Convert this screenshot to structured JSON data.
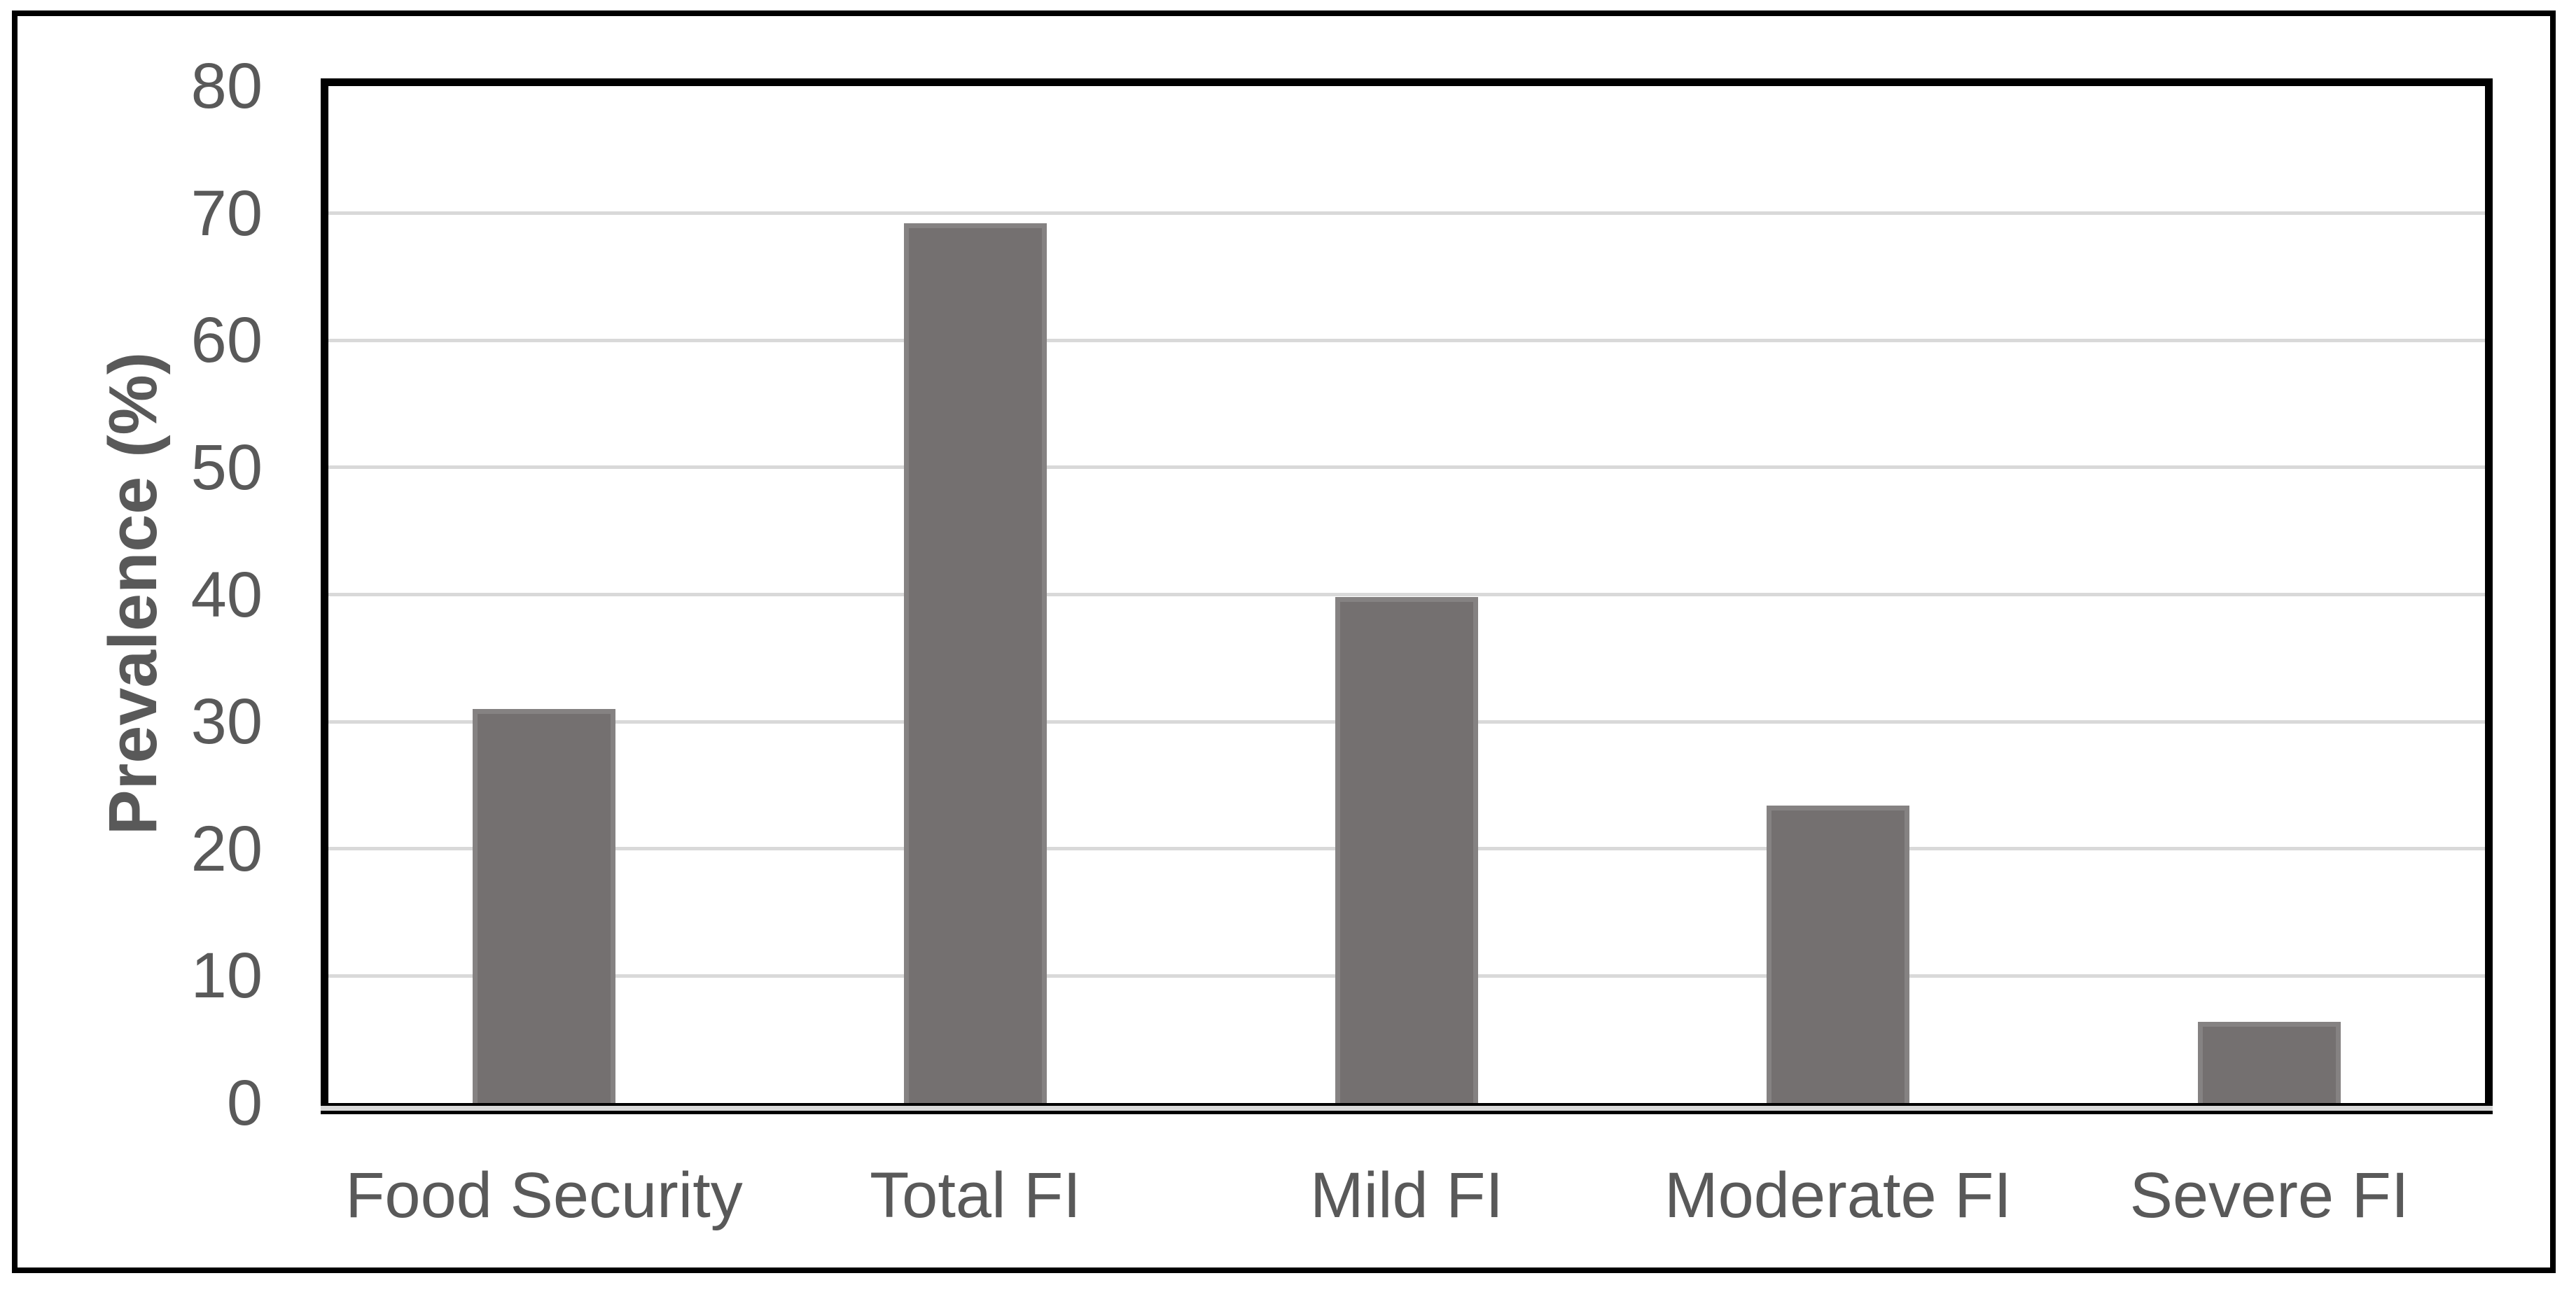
{
  "figure": {
    "background": "#FFFFFF",
    "outer_border_color": "#000000"
  },
  "chart_data": {
    "type": "bar",
    "title": "",
    "categories": [
      "Food Security",
      "Total FI",
      "Mild FI",
      "Moderate FI",
      "Severe FI"
    ],
    "values": [
      31,
      69.2,
      39.8,
      23.4,
      6.4
    ],
    "xlabel": "",
    "ylabel": "Prevalence (%)",
    "ylim": [
      0,
      80
    ],
    "yticks": [
      0,
      10,
      20,
      30,
      40,
      50,
      60,
      70,
      80
    ],
    "grid": "horizontal",
    "legend_position": "none",
    "bar_fill_color": "#747070",
    "bar_border_color": "#858282",
    "gridline_color": "#D9D9D9",
    "axis_label_color": "#595959",
    "axis_line_color": "#000000",
    "plot_background": "#FFFFFF"
  }
}
